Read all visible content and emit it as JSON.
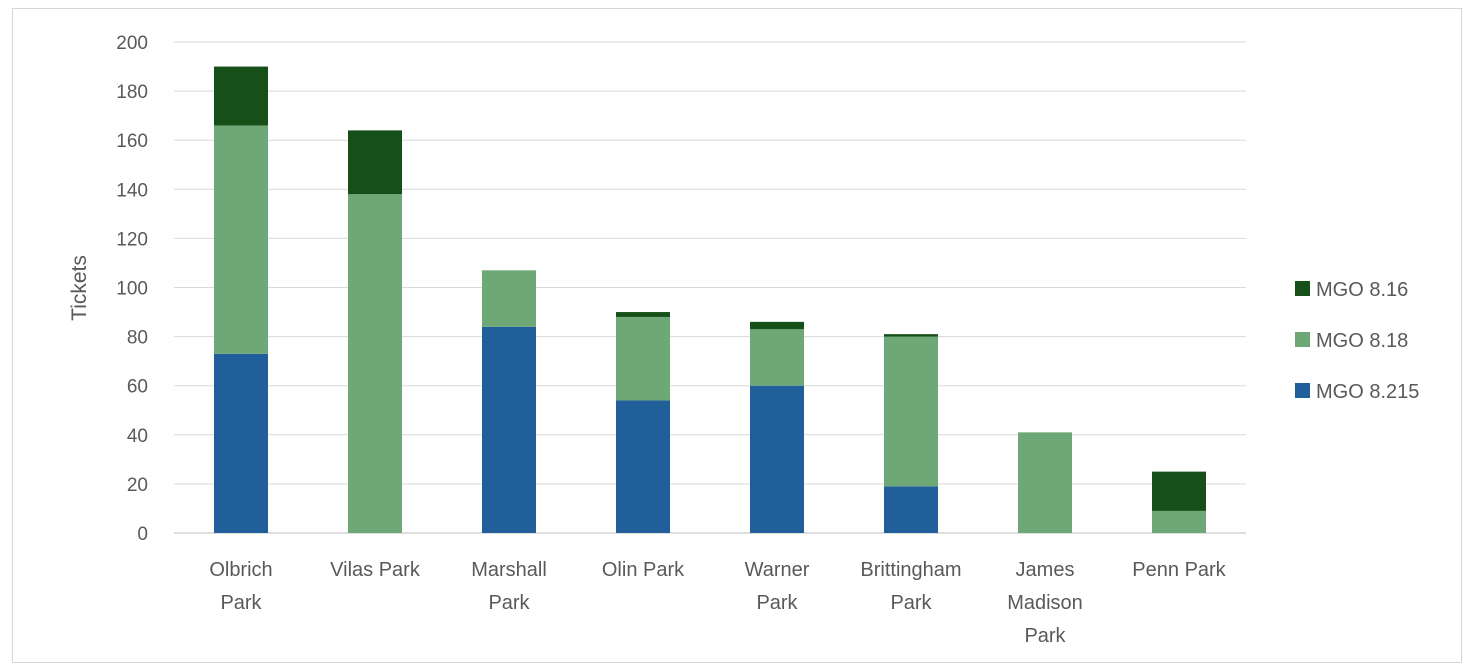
{
  "chart_data": {
    "type": "bar",
    "stacked": true,
    "title": "",
    "ylabel": "Tickets",
    "xlabel": "",
    "ylim": [
      0,
      200
    ],
    "yticks": [
      0,
      20,
      40,
      60,
      80,
      100,
      120,
      140,
      160,
      180,
      200
    ],
    "grid": "horizontal",
    "legend_position": "right",
    "categories": [
      [
        "Olbrich",
        "Park"
      ],
      [
        "Vilas Park"
      ],
      [
        "Marshall",
        "Park"
      ],
      [
        "Olin Park"
      ],
      [
        "Warner",
        "Park"
      ],
      [
        "Brittingham",
        "Park"
      ],
      [
        "James",
        "Madison",
        "Park"
      ],
      [
        "Penn Park"
      ]
    ],
    "series": [
      {
        "name": "MGO 8.215",
        "color": "#205f9a",
        "values": [
          73,
          0,
          84,
          54,
          60,
          19,
          0,
          0
        ]
      },
      {
        "name": "MGO 8.18",
        "color": "#6fa877",
        "values": [
          93,
          138,
          23,
          34,
          23,
          61,
          41,
          9
        ]
      },
      {
        "name": "MGO 8.16",
        "color": "#174f19",
        "values": [
          24,
          26,
          0,
          2,
          3,
          1,
          0,
          16
        ]
      }
    ],
    "legend_order": [
      "MGO 8.16",
      "MGO 8.18",
      "MGO 8.215"
    ]
  }
}
